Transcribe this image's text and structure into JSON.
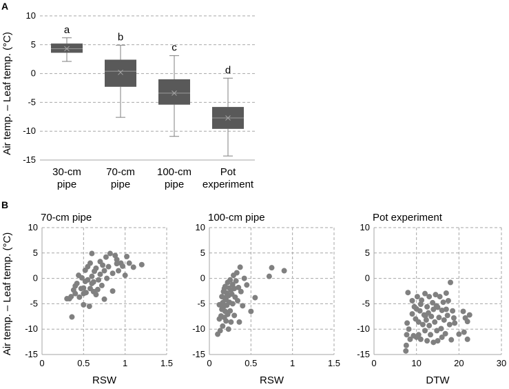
{
  "chart_data": [
    {
      "type": "box",
      "panel": "A",
      "ylabel": "Air temp. – Leaf temp. (°C)",
      "ylim": [
        -15,
        10
      ],
      "yticks": [
        10,
        5,
        0,
        -5,
        -10,
        -15
      ],
      "categories": [
        "30-cm pipe",
        "70-cm pipe",
        "100-cm pipe",
        "Pot experiment"
      ],
      "category_lines": [
        [
          "30-cm",
          "pipe"
        ],
        [
          "70-cm",
          "pipe"
        ],
        [
          "100-cm",
          "pipe"
        ],
        [
          "Pot",
          "experiment"
        ]
      ],
      "boxes": [
        {
          "min": 2.1,
          "q1": 3.6,
          "median": 4.3,
          "mean": 4.3,
          "q3": 5.2,
          "max": 6.2,
          "letter": "a"
        },
        {
          "min": -7.6,
          "q1": -2.3,
          "median": 0.4,
          "mean": 0.2,
          "q3": 2.4,
          "max": 4.9,
          "letter": "b"
        },
        {
          "min": -10.9,
          "q1": -5.4,
          "median": -3.4,
          "mean": -3.4,
          "q3": -1.0,
          "max": 3.1,
          "letter": "c"
        },
        {
          "min": -14.3,
          "q1": -9.6,
          "median": -7.7,
          "mean": -7.7,
          "q3": -5.8,
          "max": -0.8,
          "letter": "d"
        }
      ]
    },
    {
      "type": "scatter",
      "panel": "B",
      "title": "70-cm pipe",
      "xlabel": "RSW",
      "ylabel": "Air temp. – Leaf temp. (°C)",
      "xlim": [
        0,
        1.5
      ],
      "xticks": [
        "0",
        "0.5",
        "1",
        "1.5"
      ],
      "ylim": [
        -15,
        10
      ],
      "yticks": [
        10,
        5,
        0,
        -5,
        -10,
        -15
      ],
      "points": [
        [
          0.3,
          -4.0
        ],
        [
          0.33,
          -4.0
        ],
        [
          0.35,
          -3.6
        ],
        [
          0.36,
          -7.6
        ],
        [
          0.38,
          -2.3
        ],
        [
          0.4,
          -3.0
        ],
        [
          0.4,
          -1.5
        ],
        [
          0.42,
          -1.0
        ],
        [
          0.45,
          -3.7
        ],
        [
          0.47,
          -2.0
        ],
        [
          0.48,
          0.1
        ],
        [
          0.5,
          -1.9
        ],
        [
          0.5,
          -5.2
        ],
        [
          0.52,
          -0.6
        ],
        [
          0.52,
          1.6
        ],
        [
          0.53,
          -2.8
        ],
        [
          0.55,
          -0.3
        ],
        [
          0.55,
          2.3
        ],
        [
          0.57,
          -5.5
        ],
        [
          0.58,
          -2.0
        ],
        [
          0.58,
          3.0
        ],
        [
          0.6,
          -1.0
        ],
        [
          0.6,
          0.4
        ],
        [
          0.6,
          4.9
        ],
        [
          0.62,
          -0.7
        ],
        [
          0.63,
          1.4
        ],
        [
          0.65,
          -3.2
        ],
        [
          0.65,
          2.0
        ],
        [
          0.67,
          -2.2
        ],
        [
          0.68,
          -0.3
        ],
        [
          0.7,
          0.8
        ],
        [
          0.7,
          3.3
        ],
        [
          0.72,
          -1.4
        ],
        [
          0.73,
          2.6
        ],
        [
          0.75,
          -4.1
        ],
        [
          0.75,
          1.5
        ],
        [
          0.77,
          4.2
        ],
        [
          0.78,
          0.0
        ],
        [
          0.8,
          2.3
        ],
        [
          0.82,
          4.9
        ],
        [
          0.85,
          -2.5
        ],
        [
          0.85,
          1.0
        ],
        [
          0.88,
          4.5
        ],
        [
          0.9,
          3.7
        ],
        [
          0.92,
          1.5
        ],
        [
          0.95,
          3.0
        ],
        [
          0.97,
          2.4
        ],
        [
          1.0,
          0.6
        ],
        [
          1.02,
          4.3
        ],
        [
          1.05,
          3.0
        ],
        [
          1.1,
          2.2
        ],
        [
          1.2,
          2.7
        ],
        [
          0.44,
          0.6
        ],
        [
          0.5,
          -3.0
        ],
        [
          0.62,
          -2.6
        ],
        [
          0.9,
          2.9
        ]
      ]
    },
    {
      "type": "scatter",
      "panel": "B",
      "title": "100-cm pipe",
      "xlabel": "RSW",
      "ylim": [
        -15,
        10
      ],
      "yticks": [
        10,
        5,
        0,
        -5,
        -10,
        -15
      ],
      "xlim": [
        0,
        1.5
      ],
      "xticks": [
        "0",
        "0.5",
        "1",
        "1.5"
      ],
      "points": [
        [
          0.1,
          -11.0
        ],
        [
          0.12,
          -5.2
        ],
        [
          0.12,
          -8.0
        ],
        [
          0.13,
          -10.3
        ],
        [
          0.14,
          -7.4
        ],
        [
          0.15,
          -3.6
        ],
        [
          0.15,
          -6.1
        ],
        [
          0.16,
          -4.8
        ],
        [
          0.16,
          -9.4
        ],
        [
          0.17,
          -2.6
        ],
        [
          0.17,
          -5.6
        ],
        [
          0.18,
          -7.7
        ],
        [
          0.18,
          -3.8
        ],
        [
          0.19,
          -1.6
        ],
        [
          0.19,
          -6.5
        ],
        [
          0.2,
          -4.2
        ],
        [
          0.2,
          -8.4
        ],
        [
          0.21,
          -2.9
        ],
        [
          0.21,
          -5.3
        ],
        [
          0.22,
          -0.8
        ],
        [
          0.22,
          -7.1
        ],
        [
          0.23,
          -3.4
        ],
        [
          0.23,
          -10.0
        ],
        [
          0.24,
          -1.9
        ],
        [
          0.24,
          -4.7
        ],
        [
          0.25,
          -0.3
        ],
        [
          0.25,
          -6.4
        ],
        [
          0.26,
          -2.3
        ],
        [
          0.26,
          -8.6
        ],
        [
          0.27,
          -3.1
        ],
        [
          0.28,
          -1.2
        ],
        [
          0.28,
          -5.0
        ],
        [
          0.29,
          0.6
        ],
        [
          0.3,
          -2.0
        ],
        [
          0.3,
          -7.3
        ],
        [
          0.31,
          -3.7
        ],
        [
          0.32,
          -0.5
        ],
        [
          0.33,
          1.1
        ],
        [
          0.34,
          -4.4
        ],
        [
          0.35,
          -1.8
        ],
        [
          0.36,
          -8.6
        ],
        [
          0.37,
          2.2
        ],
        [
          0.38,
          -2.6
        ],
        [
          0.4,
          -5.4
        ],
        [
          0.42,
          0.0
        ],
        [
          0.45,
          -1.3
        ],
        [
          0.5,
          -6.5
        ],
        [
          0.55,
          -3.8
        ],
        [
          0.75,
          2.1
        ],
        [
          0.72,
          0.4
        ],
        [
          0.9,
          1.5
        ],
        [
          0.18,
          -2.0
        ]
      ]
    },
    {
      "type": "scatter",
      "panel": "B",
      "title": "Pot experiment",
      "xlabel": "DTW",
      "ylim": [
        -15,
        10
      ],
      "yticks": [
        10,
        5,
        0,
        -5,
        -10,
        -15
      ],
      "xlim": [
        0,
        30
      ],
      "xticks": [
        "0",
        "10",
        "20",
        "30"
      ],
      "points": [
        [
          7.5,
          -14.3
        ],
        [
          7.6,
          -13.2
        ],
        [
          7.7,
          -11.1
        ],
        [
          7.8,
          -8.8
        ],
        [
          8,
          -2.8
        ],
        [
          8.2,
          -10.0
        ],
        [
          8.5,
          -12.0
        ],
        [
          9,
          -7.0
        ],
        [
          9,
          -4.4
        ],
        [
          9.3,
          -11.3
        ],
        [
          9.5,
          -5.6
        ],
        [
          9.8,
          -8.0
        ],
        [
          10,
          -11.6
        ],
        [
          10,
          -6.0
        ],
        [
          10.2,
          -3.6
        ],
        [
          10.5,
          -11.1
        ],
        [
          10.5,
          -8.6
        ],
        [
          10.8,
          -6.4
        ],
        [
          11,
          -5.1
        ],
        [
          11,
          -12.0
        ],
        [
          11.2,
          -4.3
        ],
        [
          11.5,
          -9.1
        ],
        [
          11.8,
          -7.2
        ],
        [
          12,
          -3.0
        ],
        [
          12,
          -10.3
        ],
        [
          12.3,
          -8.2
        ],
        [
          12.5,
          -5.6
        ],
        [
          12.5,
          -12.3
        ],
        [
          12.8,
          -6.8
        ],
        [
          13,
          -3.6
        ],
        [
          13,
          -9.3
        ],
        [
          13.3,
          -11.1
        ],
        [
          13.5,
          -7.5
        ],
        [
          13.8,
          -4.8
        ],
        [
          14,
          -12.6
        ],
        [
          14,
          -6.1
        ],
        [
          14.3,
          -8.6
        ],
        [
          14.5,
          -3.2
        ],
        [
          14.8,
          -10.3
        ],
        [
          15,
          -5.7
        ],
        [
          15,
          -12.3
        ],
        [
          15.3,
          -7.7
        ],
        [
          15.5,
          -3.6
        ],
        [
          15.8,
          -9.9
        ],
        [
          16,
          -6.3
        ],
        [
          16,
          -11.6
        ],
        [
          16.3,
          -4.7
        ],
        [
          16.5,
          -8.2
        ],
        [
          16.8,
          -10.9
        ],
        [
          17,
          -6.1
        ],
        [
          17,
          -2.9
        ],
        [
          17.3,
          -7.3
        ],
        [
          17.5,
          -4.4
        ],
        [
          17.8,
          -9.1
        ],
        [
          18,
          -0.8
        ],
        [
          18.2,
          -12.1
        ],
        [
          18.5,
          -6.4
        ],
        [
          18.8,
          -7.8
        ],
        [
          19,
          -8.8
        ],
        [
          20,
          -11.0
        ],
        [
          21,
          -6.5
        ],
        [
          21.5,
          -7.8
        ],
        [
          22,
          -12.0
        ],
        [
          22,
          -8.5
        ],
        [
          22.5,
          -7.2
        ],
        [
          21.2,
          -10.6
        ],
        [
          12.1,
          -7.4
        ],
        [
          14.7,
          -5.4
        ]
      ]
    }
  ],
  "panel_a_label": "A",
  "panel_b_label": "B"
}
